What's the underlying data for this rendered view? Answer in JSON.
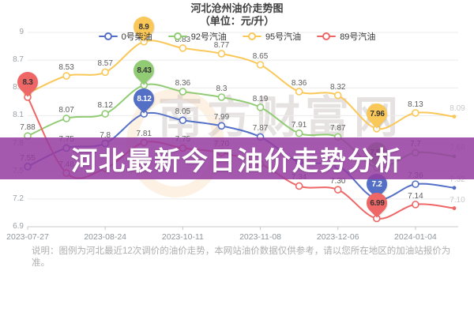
{
  "header": {
    "title": "河北沧州油价走势图",
    "subtitle": "（单位：元/升）"
  },
  "banner": {
    "text": "河北最新今日油价走势分析",
    "color": "#953da1"
  },
  "watermark": {
    "text": "南方财富网"
  },
  "footer": {
    "line1": "说明：图例为河北最近12次调价的油价走势，本网站油价数据仅供参考，请以您所在地区的加油站报价为",
    "line2": "准。"
  },
  "chart_data": {
    "type": "line",
    "title": "河北沧州油价走势图",
    "subtitle": "（单位：元/升）",
    "ylabel": "元/升",
    "ylim": [
      6.9,
      9.0
    ],
    "y_ticks": [
      9,
      8.7,
      8.4,
      8.1,
      7.8,
      7.5,
      7.2,
      6.9
    ],
    "grid": true,
    "legend_position": "top",
    "num_points": 12,
    "x_tick_indices": [
      0,
      2,
      4,
      6,
      8,
      10
    ],
    "x_tick_labels": [
      "2023-07-27",
      "2023-08-24",
      "2023-10-11",
      "2023-11-08",
      "2023-12-06",
      "2024-01-04"
    ],
    "series": [
      {
        "name": "0号柴油",
        "color": "#5470c6",
        "balloon_text_color": "#ffffff",
        "values": [
          7.55,
          7.75,
          7.8,
          8.12,
          8.05,
          7.99,
          7.87,
          7.6,
          7.56,
          7.2,
          7.36,
          7.32
        ],
        "labels": [
          "7.55",
          "7.75",
          "7.8",
          null,
          "8.05",
          "7.99",
          "7.87",
          null,
          null,
          null,
          "7.36",
          "7.32"
        ],
        "max_point": {
          "index": 3,
          "text": "8.12"
        },
        "min_point": {
          "index": 9,
          "text": "7.2"
        }
      },
      {
        "name": "92号汽油",
        "color": "#91cc75",
        "balloon_text_color": "#333333",
        "values": [
          7.88,
          8.07,
          8.12,
          8.43,
          8.36,
          8.3,
          8.19,
          7.91,
          7.87,
          7.54,
          7.7,
          7.66
        ],
        "labels": [
          "7.88",
          "8.07",
          "8.12",
          null,
          "8.36",
          "8.3",
          "8.19",
          "7.91",
          "7.87",
          null,
          "7.7",
          "7.66"
        ],
        "max_point": {
          "index": 3,
          "text": "8.43"
        },
        "min_point": {
          "index": 9,
          "text": "7.54"
        }
      },
      {
        "name": "95号汽油",
        "color": "#fac858",
        "balloon_text_color": "#333333",
        "values": [
          8.34,
          8.53,
          8.57,
          8.9,
          8.83,
          8.77,
          8.65,
          8.36,
          8.32,
          7.96,
          8.13,
          8.09
        ],
        "labels": [
          null,
          "8.53",
          "8.57",
          null,
          "8.83",
          "8.77",
          "8.65",
          "8.36",
          "8.32",
          null,
          "8.13",
          "8.09"
        ],
        "max_point": {
          "index": 3,
          "text": "8.9"
        },
        "min_point": {
          "index": 9,
          "text": "7.96"
        }
      },
      {
        "name": "89号汽油",
        "color": "#ee6666",
        "balloon_text_color": "#333333",
        "values": [
          8.3,
          7.48,
          7.53,
          7.81,
          7.75,
          7.7,
          7.58,
          7.34,
          7.3,
          6.99,
          7.14,
          7.1
        ],
        "labels": [
          null,
          "7.48",
          null,
          "7.81",
          "7.75",
          "7.70",
          null,
          "7.34",
          "7.30",
          null,
          "7.14",
          "7.10"
        ],
        "max_point": {
          "index": 0,
          "text": "8.3"
        },
        "min_point": {
          "index": 9,
          "text": "6.99"
        }
      }
    ]
  }
}
